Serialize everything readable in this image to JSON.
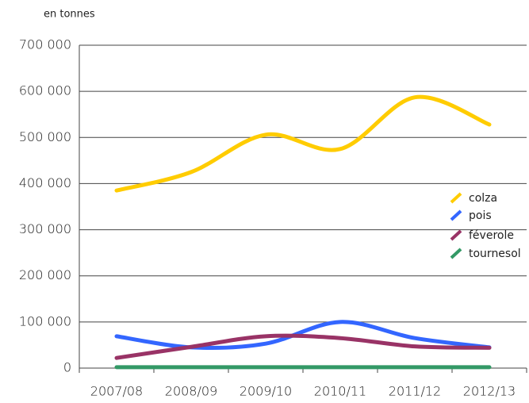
{
  "chart_data": {
    "type": "line",
    "y_label": "en tonnes",
    "categories": [
      "2007/08",
      "2008/09",
      "2009/10",
      "2010/11",
      "2011/12",
      "2012/13"
    ],
    "series": [
      {
        "name": "colza",
        "color": "#ffcc00",
        "values": [
          385000,
          425000,
          506000,
          475000,
          587000,
          528000
        ]
      },
      {
        "name": "pois",
        "color": "#3366ff",
        "values": [
          69000,
          45000,
          53000,
          100000,
          65000,
          45000
        ]
      },
      {
        "name": "féverole",
        "color": "#993366",
        "values": [
          22000,
          46000,
          69000,
          65000,
          47000,
          44000
        ]
      },
      {
        "name": "tournesol",
        "color": "#339966",
        "values": [
          2000,
          2000,
          2000,
          2000,
          2000,
          2000
        ]
      }
    ],
    "ylim": [
      0,
      700000
    ],
    "yticks": [
      0,
      {
        "value": 100000,
        "label": "100 000"
      },
      {
        "value": 200000,
        "label": "200 000"
      },
      {
        "value": 300000,
        "label": "300 000"
      },
      {
        "value": 400000,
        "label": "400 000"
      },
      {
        "value": 500000,
        "label": "500 000"
      },
      {
        "value": 600000,
        "label": "600 000"
      },
      {
        "value": 700000,
        "label": "700 000"
      }
    ],
    "grid": true
  }
}
